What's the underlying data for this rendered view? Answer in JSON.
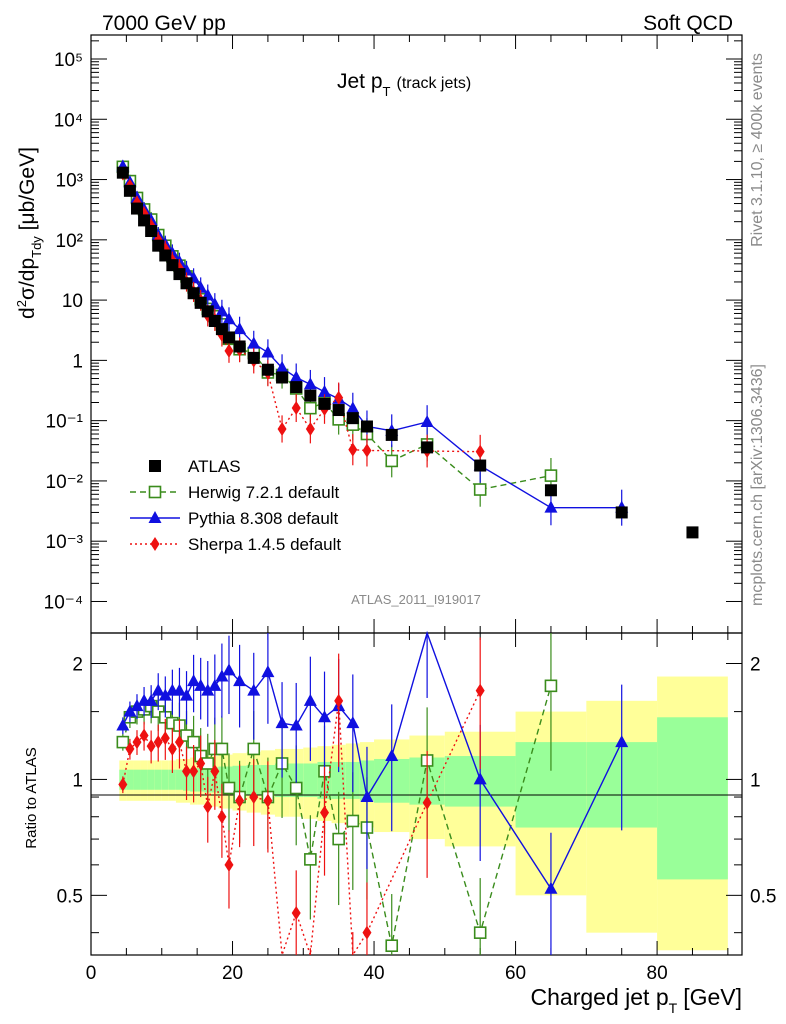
{
  "header": {
    "left": "7000 GeV pp",
    "right": "Soft QCD"
  },
  "side_labels": {
    "rivet": "Rivet 3.1.10, ≥ 400k events",
    "mcplots": "mcplots.cern.ch [arXiv:1306.3436]"
  },
  "chart_data": {
    "type": "scatter",
    "title_main": "Jet p",
    "title_sub": "T",
    "title_note": "(track jets)",
    "analysis_id": "ATLAS_2011_I919017",
    "ylabel": "d²σ/dp_Tdy [μb/GeV]",
    "ylabel_ratio": "Ratio to ATLAS",
    "xlabel_main": "Charged jet p",
    "xlabel_sub": "T",
    "xlabel_unit": "[GeV]",
    "xlim": [
      0,
      92
    ],
    "ylim_log": [
      3e-05,
      250000.0
    ],
    "ratio_ylim": [
      0.35,
      2.4
    ],
    "x_ticks": [
      "0",
      "20",
      "40",
      "60",
      "80"
    ],
    "y_ticks": [
      "10⁻⁴",
      "10⁻³",
      "10⁻²",
      "10⁻¹",
      "1",
      "10",
      "10²",
      "10³",
      "10⁴",
      "10⁵"
    ],
    "ratio_ticks": [
      "0.5",
      "1",
      "2"
    ],
    "legend": [
      {
        "name": "ATLAS",
        "color": "#000000"
      },
      {
        "name": "Herwig 7.2.1 default",
        "color": "#3a8c1c"
      },
      {
        "name": "Pythia 8.308 default",
        "color": "#1010e0"
      },
      {
        "name": "Sherpa 1.4.5 default",
        "color": "#ee1111"
      }
    ],
    "data_x": [
      4.5,
      5.5,
      6.5,
      7.5,
      8.5,
      9.5,
      10.5,
      11.5,
      12.5,
      13.5,
      14.5,
      15.5,
      16.5,
      17.5,
      18.5,
      19.5,
      21,
      23,
      25,
      27,
      29,
      31,
      33,
      35,
      37,
      39,
      42.5,
      47.5,
      55,
      65,
      75,
      85
    ],
    "data_y": [
      1300,
      650,
      330,
      210,
      140,
      80,
      55,
      38,
      27,
      19,
      13,
      9,
      6.5,
      4.5,
      3.3,
      2.4,
      1.7,
      1.1,
      0.7,
      0.52,
      0.36,
      0.26,
      0.19,
      0.15,
      0.11,
      0.08,
      0.058,
      0.036,
      0.018,
      0.007,
      0.003,
      0.0014
    ],
    "series": [
      {
        "name": "Herwig 7.2.1 default",
        "color": "#3a8c1c",
        "marker": "open-square",
        "dash": "6,4",
        "x": [
          4.5,
          5.5,
          6.5,
          7.5,
          8.5,
          9.5,
          10.5,
          11.5,
          12.5,
          13.5,
          14.5,
          15.5,
          16.5,
          17.5,
          18.5,
          19.5,
          21,
          23,
          25,
          27,
          29,
          31,
          33,
          35,
          37,
          39,
          42.5,
          47.5,
          55,
          65
        ],
        "ratio": [
          1.25,
          1.45,
          1.5,
          1.52,
          1.55,
          1.5,
          1.45,
          1.4,
          1.38,
          1.3,
          1.25,
          1.15,
          1.1,
          1.2,
          1.2,
          0.95,
          0.9,
          1.2,
          0.9,
          1.1,
          0.95,
          0.62,
          1.05,
          0.7,
          0.78,
          0.75,
          0.37,
          1.12,
          0.4,
          1.75
        ]
      },
      {
        "name": "Pythia 8.308 default",
        "color": "#1010e0",
        "marker": "triangle",
        "dash": "",
        "x": [
          4.5,
          5.5,
          6.5,
          7.5,
          8.5,
          9.5,
          10.5,
          11.5,
          12.5,
          13.5,
          14.5,
          15.5,
          16.5,
          17.5,
          18.5,
          19.5,
          21,
          23,
          25,
          27,
          29,
          31,
          33,
          35,
          37,
          39,
          42.5,
          47.5,
          55,
          65,
          75
        ],
        "ratio": [
          1.38,
          1.5,
          1.55,
          1.6,
          1.6,
          1.7,
          1.65,
          1.7,
          1.7,
          1.65,
          1.8,
          1.75,
          1.7,
          1.75,
          1.85,
          1.92,
          1.8,
          1.7,
          1.9,
          1.4,
          1.38,
          1.6,
          1.45,
          1.55,
          1.4,
          0.9,
          1.15,
          2.6,
          1.0,
          0.52,
          1.25
        ],
        "y": [
          1650,
          900,
          500,
          320,
          210,
          120,
          85,
          60,
          43,
          31,
          23,
          16,
          12,
          8.5,
          6.5,
          4.8,
          3.3,
          1.9,
          1.35,
          0.75,
          0.52,
          0.4,
          0.3,
          0.23,
          0.16,
          0.08,
          0.068,
          0.095,
          0.018,
          0.0036,
          0.0036
        ]
      },
      {
        "name": "Sherpa 1.4.5 default",
        "color": "#ee1111",
        "marker": "diamond",
        "dash": "2,3",
        "x": [
          4.5,
          5.5,
          6.5,
          7.5,
          8.5,
          9.5,
          10.5,
          11.5,
          12.5,
          13.5,
          14.5,
          15.5,
          16.5,
          17.5,
          18.5,
          19.5,
          21,
          23,
          25,
          27,
          29,
          31,
          33,
          35,
          37,
          39,
          47.5,
          55
        ],
        "ratio": [
          0.97,
          1.2,
          1.25,
          1.3,
          1.22,
          1.25,
          1.28,
          1.2,
          1.25,
          1.05,
          1.05,
          1.1,
          0.85,
          1.05,
          0.8,
          0.6,
          0.88,
          0.9,
          0.88,
          0.14,
          0.45,
          0.28,
          0.82,
          1.6,
          0.3,
          0.4,
          0.87,
          1.7
        ]
      }
    ],
    "band_edges": [
      4,
      5,
      6,
      7,
      8,
      9,
      10,
      11,
      12,
      13,
      14,
      15,
      16,
      17,
      18,
      19,
      20,
      22,
      24,
      26,
      28,
      30,
      32,
      34,
      36,
      38,
      40,
      45,
      50,
      60,
      70,
      80,
      90
    ],
    "band_inner": [
      0.06,
      0.06,
      0.06,
      0.06,
      0.06,
      0.06,
      0.06,
      0.06,
      0.06,
      0.065,
      0.07,
      0.07,
      0.075,
      0.075,
      0.08,
      0.08,
      0.085,
      0.09,
      0.09,
      0.1,
      0.1,
      0.1,
      0.11,
      0.11,
      0.11,
      0.12,
      0.13,
      0.14,
      0.15,
      0.25,
      0.25,
      0.45
    ],
    "band_outer": [
      0.12,
      0.12,
      0.12,
      0.12,
      0.12,
      0.12,
      0.12,
      0.12,
      0.13,
      0.13,
      0.14,
      0.14,
      0.15,
      0.15,
      0.16,
      0.16,
      0.17,
      0.18,
      0.19,
      0.2,
      0.2,
      0.21,
      0.22,
      0.23,
      0.24,
      0.25,
      0.27,
      0.3,
      0.33,
      0.5,
      0.6,
      0.85
    ]
  }
}
